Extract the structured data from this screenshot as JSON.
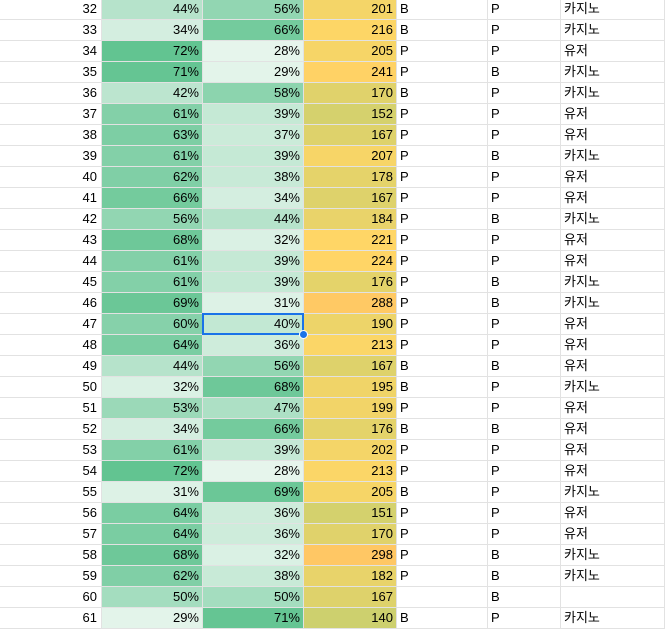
{
  "sheet": {
    "rows": [
      [
        32,
        "44%",
        "56%",
        201,
        "B",
        "P",
        "카지노"
      ],
      [
        33,
        "34%",
        "66%",
        216,
        "B",
        "P",
        "카지노"
      ],
      [
        34,
        "72%",
        "28%",
        205,
        "P",
        "P",
        "유저"
      ],
      [
        35,
        "71%",
        "29%",
        241,
        "P",
        "B",
        "카지노"
      ],
      [
        36,
        "42%",
        "58%",
        170,
        "B",
        "P",
        "카지노"
      ],
      [
        37,
        "61%",
        "39%",
        152,
        "P",
        "P",
        "유저"
      ],
      [
        38,
        "63%",
        "37%",
        167,
        "P",
        "P",
        "유저"
      ],
      [
        39,
        "61%",
        "39%",
        207,
        "P",
        "B",
        "카지노"
      ],
      [
        40,
        "62%",
        "38%",
        178,
        "P",
        "P",
        "유저"
      ],
      [
        41,
        "66%",
        "34%",
        167,
        "P",
        "P",
        "유저"
      ],
      [
        42,
        "56%",
        "44%",
        184,
        "P",
        "B",
        "카지노"
      ],
      [
        43,
        "68%",
        "32%",
        221,
        "P",
        "P",
        "유저"
      ],
      [
        44,
        "61%",
        "39%",
        224,
        "P",
        "P",
        "유저"
      ],
      [
        45,
        "61%",
        "39%",
        176,
        "P",
        "B",
        "카지노"
      ],
      [
        46,
        "69%",
        "31%",
        288,
        "P",
        "B",
        "카지노"
      ],
      [
        47,
        "60%",
        "40%",
        190,
        "P",
        "P",
        "유저"
      ],
      [
        48,
        "64%",
        "36%",
        213,
        "P",
        "P",
        "유저"
      ],
      [
        49,
        "44%",
        "56%",
        167,
        "B",
        "B",
        "유저"
      ],
      [
        50,
        "32%",
        "68%",
        195,
        "B",
        "P",
        "카지노"
      ],
      [
        51,
        "53%",
        "47%",
        199,
        "P",
        "P",
        "유저"
      ],
      [
        52,
        "34%",
        "66%",
        176,
        "B",
        "B",
        "유저"
      ],
      [
        53,
        "61%",
        "39%",
        202,
        "P",
        "P",
        "유저"
      ],
      [
        54,
        "72%",
        "28%",
        213,
        "P",
        "P",
        "유저"
      ],
      [
        55,
        "31%",
        "69%",
        205,
        "B",
        "P",
        "카지노"
      ],
      [
        56,
        "64%",
        "36%",
        151,
        "P",
        "P",
        "유저"
      ],
      [
        57,
        "64%",
        "36%",
        170,
        "P",
        "P",
        "유저"
      ],
      [
        58,
        "68%",
        "32%",
        298,
        "P",
        "B",
        "카지노"
      ],
      [
        59,
        "62%",
        "38%",
        182,
        "P",
        "B",
        "카지노"
      ],
      [
        60,
        "50%",
        "50%",
        167,
        null,
        "B",
        null
      ],
      [
        61,
        "29%",
        "71%",
        140,
        "B",
        "P",
        "카지노"
      ]
    ]
  }
}
